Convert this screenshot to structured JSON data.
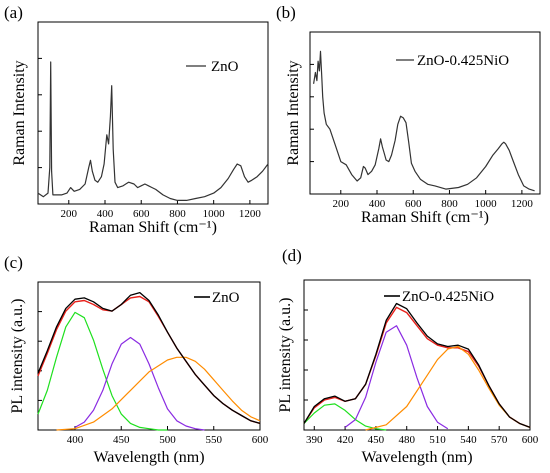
{
  "chart_data": [
    {
      "panel": "(a)",
      "type": "line",
      "xlabel": "Raman Shift (cm⁻¹)",
      "ylabel": "Raman Intensity",
      "xlim": [
        30,
        1300
      ],
      "ylim": [
        0,
        100
      ],
      "xticks": [
        200,
        400,
        600,
        800,
        1000,
        1200
      ],
      "show_ytick_labels": false,
      "legend_position": "top-right",
      "series": [
        {
          "name": "ZnO",
          "color": "#333333",
          "x": [
            30,
            60,
            85,
            95,
            100,
            105,
            112,
            130,
            160,
            190,
            210,
            230,
            260,
            290,
            310,
            320,
            330,
            345,
            360,
            380,
            395,
            410,
            420,
            430,
            437,
            445,
            455,
            470,
            500,
            530,
            560,
            580,
            600,
            620,
            640,
            660,
            680,
            720,
            760,
            800,
            850,
            900,
            950,
            1000,
            1040,
            1080,
            1110,
            1130,
            1150,
            1170,
            1190,
            1210,
            1240,
            1270,
            1300
          ],
          "y": [
            6,
            4,
            6,
            20,
            78,
            18,
            5,
            5,
            5,
            6,
            9,
            7,
            8,
            11,
            20,
            24,
            18,
            13,
            12,
            15,
            22,
            38,
            33,
            48,
            65,
            30,
            12,
            9,
            10,
            12,
            11,
            9,
            10,
            11,
            10,
            9,
            8,
            5,
            3,
            2,
            2,
            3,
            4,
            6,
            9,
            14,
            19,
            22,
            21,
            15,
            12,
            13,
            15,
            18,
            22
          ]
        }
      ]
    },
    {
      "panel": "(b)",
      "type": "line",
      "xlabel": "Raman Shift (cm⁻¹)",
      "ylabel": "Raman Intensity",
      "xlim": [
        30,
        1300
      ],
      "ylim": [
        0,
        100
      ],
      "xticks": [
        200,
        400,
        600,
        800,
        1000,
        1200
      ],
      "show_ytick_labels": false,
      "legend_position": "top-right",
      "series": [
        {
          "name": "ZnO-0.425NiO",
          "color": "#333333",
          "x": [
            50,
            60,
            68,
            75,
            82,
            88,
            95,
            100,
            108,
            120,
            140,
            170,
            200,
            230,
            260,
            290,
            310,
            325,
            335,
            350,
            370,
            390,
            410,
            420,
            430,
            440,
            450,
            465,
            480,
            500,
            515,
            530,
            545,
            560,
            575,
            590,
            610,
            640,
            680,
            720,
            780,
            850,
            900,
            950,
            1000,
            1040,
            1070,
            1090,
            1100,
            1110,
            1130,
            1150,
            1180,
            1210,
            1240,
            1270
          ],
          "y": [
            68,
            75,
            70,
            82,
            76,
            88,
            72,
            60,
            50,
            43,
            40,
            30,
            20,
            18,
            12,
            8,
            10,
            17,
            16,
            12,
            14,
            18,
            28,
            34,
            29,
            25,
            21,
            20,
            24,
            33,
            43,
            48,
            47,
            44,
            32,
            19,
            14,
            9,
            6,
            5,
            3,
            4,
            6,
            10,
            17,
            24,
            28,
            31,
            32,
            31,
            27,
            21,
            12,
            5,
            3,
            2
          ]
        }
      ]
    },
    {
      "panel": "(c)",
      "type": "line",
      "xlabel": "Wavelength (nm)",
      "ylabel": "PL intensity (a.u.)",
      "xlim": [
        360,
        600
      ],
      "ylim": [
        0,
        1.12
      ],
      "xticks": [
        400,
        450,
        500,
        550,
        600
      ],
      "show_ytick_labels": false,
      "legend_position": "top-right",
      "legend": [
        "ZnO"
      ],
      "series": [
        {
          "name": "ZnO",
          "role": "measured",
          "color": "#000000",
          "x": [
            360,
            370,
            380,
            390,
            400,
            410,
            420,
            430,
            440,
            450,
            460,
            470,
            480,
            490,
            500,
            510,
            520,
            530,
            540,
            550,
            560,
            570,
            580,
            590,
            600
          ],
          "y": [
            0.43,
            0.6,
            0.78,
            0.92,
            0.99,
            1.0,
            0.97,
            0.92,
            0.9,
            0.95,
            1.02,
            1.04,
            0.98,
            0.87,
            0.74,
            0.62,
            0.52,
            0.42,
            0.34,
            0.26,
            0.2,
            0.15,
            0.11,
            0.07,
            0.05
          ]
        },
        {
          "role": "fit-sum",
          "color": "#e8201a",
          "x": [
            360,
            370,
            380,
            390,
            400,
            410,
            420,
            430,
            440,
            450,
            460,
            470,
            480,
            490,
            500,
            510,
            520,
            530,
            540,
            550,
            560,
            570,
            580,
            590,
            600
          ],
          "y": [
            0.41,
            0.58,
            0.76,
            0.9,
            0.97,
            0.98,
            0.95,
            0.91,
            0.9,
            0.95,
            1.0,
            1.01,
            0.97,
            0.86,
            0.74,
            0.62,
            0.52,
            0.42,
            0.34,
            0.26,
            0.2,
            0.15,
            0.11,
            0.07,
            0.05
          ]
        },
        {
          "role": "fit-peak",
          "color": "#1ee01e",
          "x": [
            360,
            370,
            380,
            390,
            400,
            410,
            420,
            430,
            440,
            450,
            460,
            470,
            480,
            490,
            500
          ],
          "y": [
            0.12,
            0.3,
            0.55,
            0.78,
            0.89,
            0.85,
            0.68,
            0.46,
            0.26,
            0.12,
            0.05,
            0.02,
            0.01,
            0.0,
            0.0
          ]
        },
        {
          "role": "fit-peak",
          "color": "#8a2be2",
          "x": [
            400,
            410,
            420,
            430,
            440,
            450,
            460,
            470,
            480,
            490,
            500,
            510,
            520,
            530,
            540
          ],
          "y": [
            0.02,
            0.06,
            0.15,
            0.3,
            0.5,
            0.65,
            0.7,
            0.65,
            0.5,
            0.32,
            0.16,
            0.07,
            0.03,
            0.01,
            0.0
          ]
        },
        {
          "role": "fit-peak",
          "color": "#ff8c00",
          "x": [
            380,
            400,
            420,
            440,
            460,
            480,
            500,
            510,
            520,
            530,
            540,
            550,
            560,
            570,
            580,
            590,
            600
          ],
          "y": [
            0.0,
            0.01,
            0.06,
            0.16,
            0.3,
            0.44,
            0.53,
            0.55,
            0.55,
            0.52,
            0.46,
            0.38,
            0.3,
            0.22,
            0.15,
            0.1,
            0.07
          ]
        }
      ]
    },
    {
      "panel": "(d)",
      "type": "line",
      "xlabel": "Wavelength (nm)",
      "ylabel": "PL intensity (a.u.)",
      "xlim": [
        380,
        600
      ],
      "ylim": [
        0,
        1.15
      ],
      "xticks": [
        390,
        420,
        450,
        480,
        510,
        540,
        570,
        600
      ],
      "show_ytick_labels": false,
      "legend_position": "top-right",
      "legend": [
        "ZnO-0.425NiO"
      ],
      "series": [
        {
          "name": "ZnO-0.425NiO",
          "role": "measured",
          "color": "#000000",
          "x": [
            380,
            390,
            400,
            410,
            420,
            430,
            440,
            450,
            460,
            470,
            480,
            490,
            500,
            510,
            520,
            530,
            540,
            550,
            560,
            570,
            580,
            590,
            600
          ],
          "y": [
            0.05,
            0.18,
            0.24,
            0.26,
            0.22,
            0.24,
            0.35,
            0.58,
            0.84,
            0.97,
            0.93,
            0.82,
            0.72,
            0.66,
            0.64,
            0.65,
            0.62,
            0.5,
            0.34,
            0.2,
            0.1,
            0.05,
            0.02
          ]
        },
        {
          "role": "fit-sum",
          "color": "#e8201a",
          "x": [
            380,
            390,
            400,
            410,
            420,
            430,
            440,
            450,
            460,
            470,
            480,
            490,
            500,
            510,
            520,
            530,
            540,
            550,
            560,
            570,
            580,
            590,
            600
          ],
          "y": [
            0.05,
            0.17,
            0.23,
            0.25,
            0.22,
            0.24,
            0.35,
            0.57,
            0.82,
            0.94,
            0.9,
            0.8,
            0.7,
            0.65,
            0.63,
            0.63,
            0.6,
            0.49,
            0.34,
            0.2,
            0.1,
            0.05,
            0.02
          ]
        },
        {
          "role": "fit-peak",
          "color": "#1ee01e",
          "x": [
            380,
            390,
            400,
            410,
            420,
            430,
            440,
            450,
            460
          ],
          "y": [
            0.05,
            0.13,
            0.19,
            0.2,
            0.15,
            0.08,
            0.03,
            0.01,
            0.0
          ]
        },
        {
          "role": "fit-peak",
          "color": "#8a2be2",
          "x": [
            420,
            430,
            440,
            450,
            460,
            470,
            480,
            490,
            500,
            510,
            520
          ],
          "y": [
            0.02,
            0.08,
            0.25,
            0.52,
            0.75,
            0.8,
            0.65,
            0.4,
            0.18,
            0.06,
            0.01
          ]
        },
        {
          "role": "fit-peak",
          "color": "#ff8c00",
          "x": [
            440,
            460,
            480,
            500,
            510,
            520,
            530,
            540,
            550,
            560,
            570,
            580,
            590,
            600
          ],
          "y": [
            0.0,
            0.04,
            0.18,
            0.42,
            0.54,
            0.62,
            0.64,
            0.58,
            0.46,
            0.32,
            0.19,
            0.1,
            0.05,
            0.02
          ]
        }
      ]
    }
  ]
}
